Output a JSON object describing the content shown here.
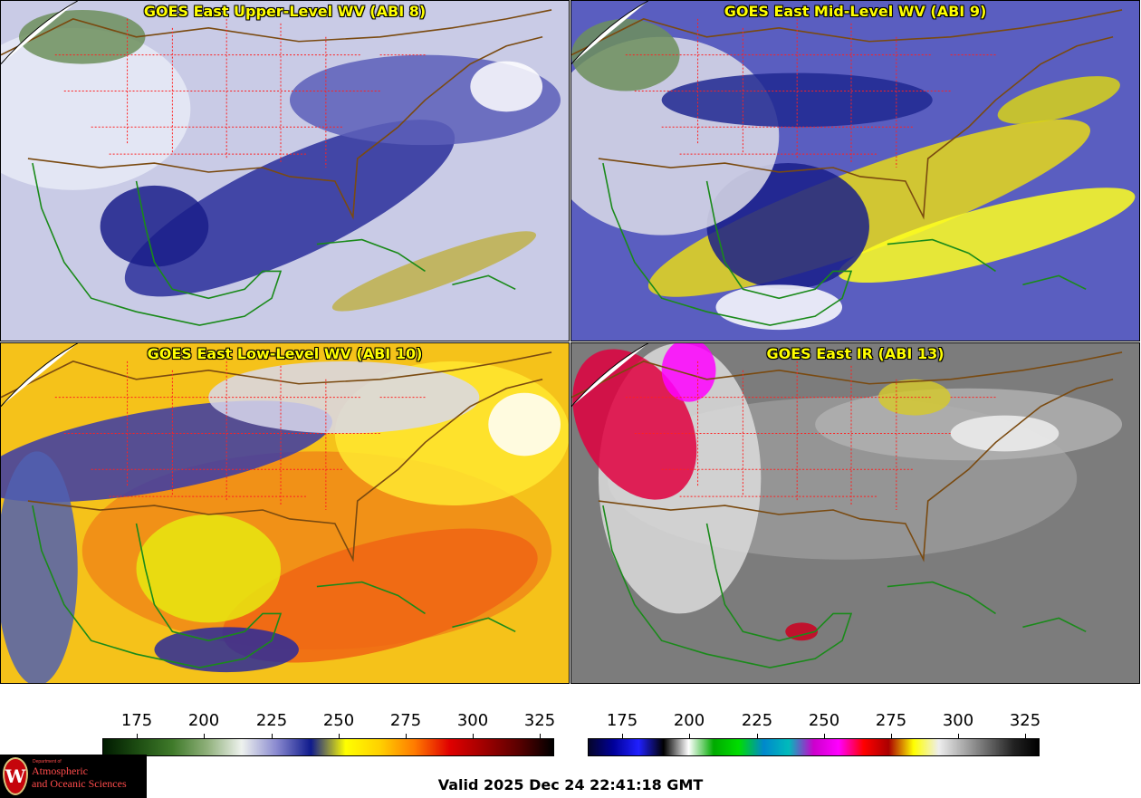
{
  "panels": [
    {
      "id": "p1",
      "title": "GOES East Upper-Level WV (ABI 8)",
      "palette": "wv",
      "scheme": "upper"
    },
    {
      "id": "p2",
      "title": "GOES East Mid-Level WV (ABI 9)",
      "palette": "wv",
      "scheme": "mid"
    },
    {
      "id": "p3",
      "title": "GOES East Low-Level WV (ABI 10)",
      "palette": "wv",
      "scheme": "low"
    },
    {
      "id": "p4",
      "title": "GOES East IR (ABI 13)",
      "palette": "ir",
      "scheme": "ir"
    }
  ],
  "colorbars": [
    {
      "name": "wv-colorbar",
      "ticks": [
        "175",
        "200",
        "225",
        "250",
        "275",
        "300",
        "325"
      ],
      "colors": [
        "#001a00",
        "#1d4d12",
        "#3f7a2a",
        "#8fb07a",
        "#eef2ee",
        "#8a8ad0",
        "#0f1a8c",
        "#ffff00",
        "#ffd000",
        "#ff7a00",
        "#e00000",
        "#a00000",
        "#5a0000",
        "#000000"
      ]
    },
    {
      "name": "ir-colorbar",
      "ticks": [
        "175",
        "200",
        "225",
        "250",
        "275",
        "300",
        "325"
      ],
      "colors": [
        "#05052a",
        "#00009a",
        "#2020ff",
        "#000000",
        "#ffffff",
        "#00aa00",
        "#00dd00",
        "#0088cc",
        "#00bbbb",
        "#cc00cc",
        "#ff00ff",
        "#ff0000",
        "#aa0000",
        "#ffff00",
        "#eeeeee",
        "#aaaaaa",
        "#666666",
        "#222222",
        "#000000"
      ]
    }
  ],
  "valid_time": "Valid 2025 Dec 24 22:41:18 GMT",
  "logo": {
    "dept": "Department of",
    "line1": "Atmospheric",
    "line2": "and Oceanic Sciences",
    "seal_letter": "W"
  }
}
